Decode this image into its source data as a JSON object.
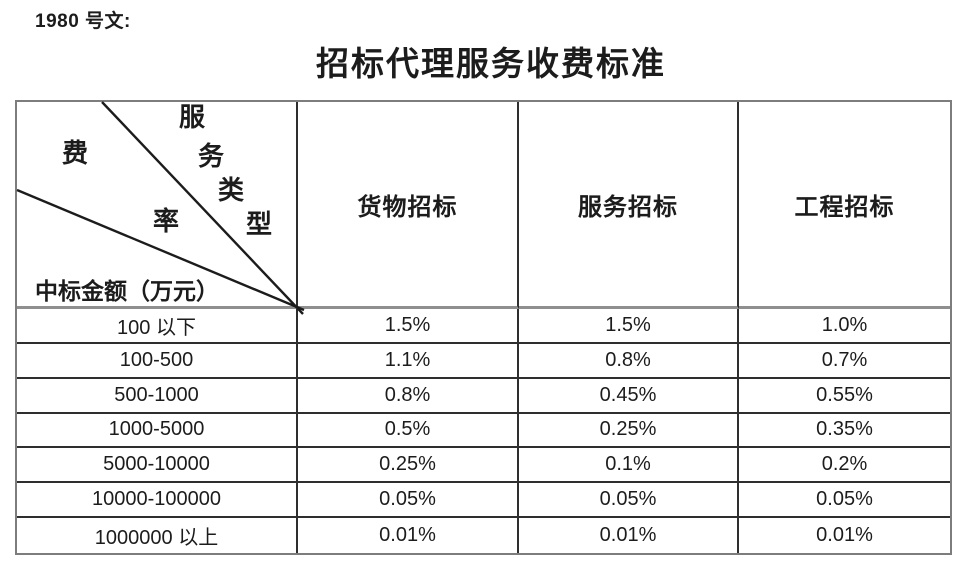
{
  "page": {
    "doc_label": "1980 号文:",
    "title": "招标代理服务收费标准"
  },
  "table": {
    "corner": {
      "service_type_chars": [
        "服",
        "务",
        "类",
        "型"
      ],
      "fee_rate_chars": [
        "费",
        "率"
      ],
      "amount_label": "中标金额（万元）"
    },
    "columns": [
      "货物招标",
      "服务招标",
      "工程招标"
    ],
    "rows": [
      {
        "label": "100 以下",
        "values": [
          "1.5%",
          "1.5%",
          "1.0%"
        ]
      },
      {
        "label": "100-500",
        "values": [
          "1.1%",
          "0.8%",
          "0.7%"
        ]
      },
      {
        "label": "500-1000",
        "values": [
          "0.8%",
          "0.45%",
          "0.55%"
        ]
      },
      {
        "label": "1000-5000",
        "values": [
          "0.5%",
          "0.25%",
          "0.35%"
        ]
      },
      {
        "label": "5000-10000",
        "values": [
          "0.25%",
          "0.1%",
          "0.2%"
        ]
      },
      {
        "label": "10000-100000",
        "values": [
          "0.05%",
          "0.05%",
          "0.05%"
        ]
      },
      {
        "label": "1000000 以上",
        "values": [
          "0.01%",
          "0.01%",
          "0.01%"
        ]
      }
    ]
  },
  "colors": {
    "text": "#1c1c1c",
    "outer_border": "#7d7d7d",
    "inner_border": "#2e2e2e",
    "header_rule": "#8f8f8f"
  }
}
